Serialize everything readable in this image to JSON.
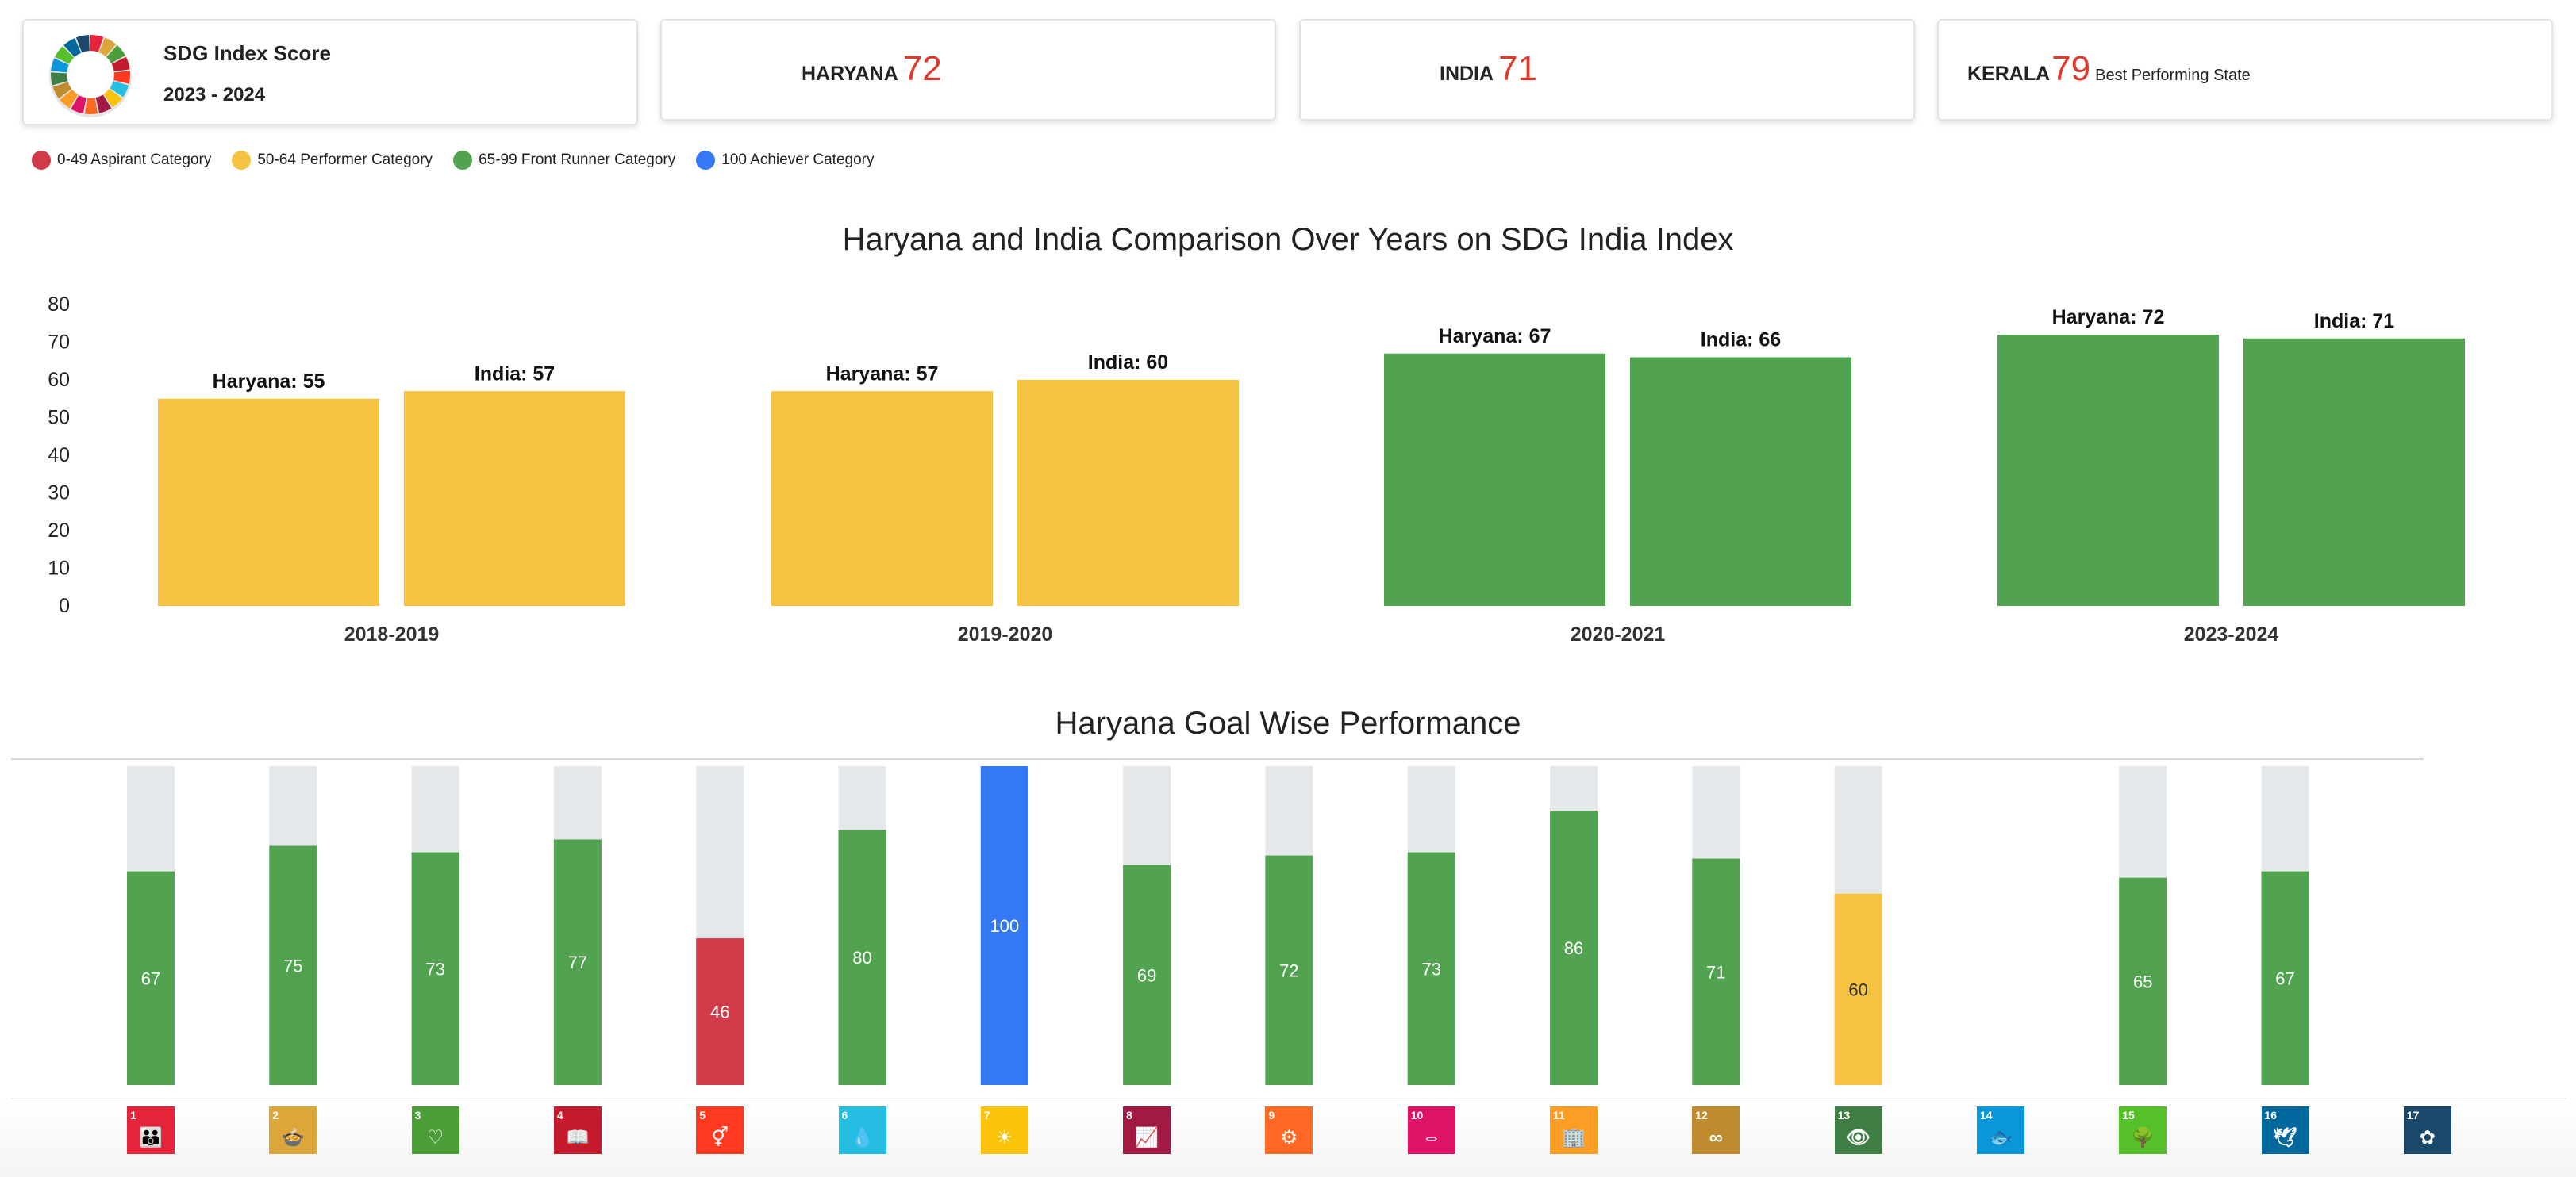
{
  "score_card": {
    "title": "SDG Index Score",
    "years": "2023 - 2024",
    "logo": "sdg-wheel-icon"
  },
  "kpis": [
    {
      "label": "HARYANA",
      "value": "72",
      "note": ""
    },
    {
      "label": "INDIA",
      "value": "71",
      "note": ""
    },
    {
      "label": "KERALA",
      "value": "79",
      "note": "Best Performing State"
    }
  ],
  "legend": [
    {
      "label": "0-49 Aspirant Category",
      "color": "#d13a48"
    },
    {
      "label": "50-64 Performer Category",
      "color": "#f5c242"
    },
    {
      "label": "65-99 Front Runner Category",
      "color": "#51a34f"
    },
    {
      "label": "100 Achiever Category",
      "color": "#3478f6"
    }
  ],
  "comparison": {
    "title": "Haryana and India Comparison Over Years on SDG India Index"
  },
  "goals": {
    "title": "Haryana Goal Wise Performance"
  },
  "chart_data": [
    {
      "type": "bar",
      "title": "Haryana and India Comparison Over Years on SDG India Index",
      "categories": [
        "2018-2019",
        "2019-2020",
        "2020-2021",
        "2023-2024"
      ],
      "series": [
        {
          "name": "Haryana",
          "values": [
            55,
            57,
            67,
            72
          ]
        },
        {
          "name": "India",
          "values": [
            57,
            60,
            66,
            71
          ]
        }
      ],
      "ylim": [
        0,
        80
      ],
      "yticks": [
        0,
        10,
        20,
        30,
        40,
        50,
        60,
        70,
        80
      ],
      "colors": {
        "performer": "#f5c242",
        "front_runner": "#51a34f"
      }
    },
    {
      "type": "bar",
      "title": "Haryana Goal Wise Performance",
      "categories": [
        "1",
        "2",
        "3",
        "4",
        "5",
        "6",
        "7",
        "8",
        "9",
        "10",
        "11",
        "12",
        "13",
        "14",
        "15",
        "16",
        "17"
      ],
      "values": [
        67,
        75,
        73,
        77,
        46,
        80,
        100,
        69,
        72,
        73,
        86,
        71,
        60,
        null,
        65,
        67,
        null
      ],
      "ylim": [
        0,
        100
      ]
    }
  ],
  "sdg_icons": [
    {
      "num": "1",
      "color": "#e5243b",
      "glyph": "👪",
      "icon": "no-poverty-icon"
    },
    {
      "num": "2",
      "color": "#dda63a",
      "glyph": "🍲",
      "icon": "zero-hunger-icon"
    },
    {
      "num": "3",
      "color": "#4c9f38",
      "glyph": "♡",
      "icon": "good-health-icon"
    },
    {
      "num": "4",
      "color": "#c5192d",
      "glyph": "📖",
      "icon": "quality-education-icon"
    },
    {
      "num": "5",
      "color": "#ff3a21",
      "glyph": "⚥",
      "icon": "gender-equality-icon"
    },
    {
      "num": "6",
      "color": "#26bde2",
      "glyph": "💧",
      "icon": "clean-water-icon"
    },
    {
      "num": "7",
      "color": "#fcc30b",
      "glyph": "☀",
      "icon": "clean-energy-icon"
    },
    {
      "num": "8",
      "color": "#a21942",
      "glyph": "📈",
      "icon": "decent-work-icon"
    },
    {
      "num": "9",
      "color": "#fd6925",
      "glyph": "⚙",
      "icon": "industry-innovation-icon"
    },
    {
      "num": "10",
      "color": "#dd1367",
      "glyph": "⇔",
      "icon": "reduced-inequalities-icon"
    },
    {
      "num": "11",
      "color": "#fd9d24",
      "glyph": "🏢",
      "icon": "sustainable-cities-icon"
    },
    {
      "num": "12",
      "color": "#bf8b2e",
      "glyph": "∞",
      "icon": "responsible-consumption-icon"
    },
    {
      "num": "13",
      "color": "#3f7e44",
      "glyph": "👁",
      "icon": "climate-action-icon"
    },
    {
      "num": "14",
      "color": "#0a97d9",
      "glyph": "🐟",
      "icon": "life-below-water-icon"
    },
    {
      "num": "15",
      "color": "#56c02b",
      "glyph": "🌳",
      "icon": "life-on-land-icon"
    },
    {
      "num": "16",
      "color": "#00689d",
      "glyph": "🕊",
      "icon": "peace-justice-icon"
    },
    {
      "num": "17",
      "color": "#19486a",
      "glyph": "✿",
      "icon": "partnerships-icon"
    }
  ]
}
